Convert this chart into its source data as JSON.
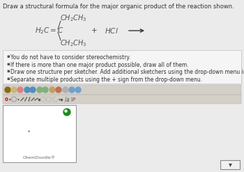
{
  "title": "Draw a structural formula for the major organic product of the reaction shown.",
  "title_fontsize": 6.0,
  "title_color": "#333333",
  "bg_color": "#ebebeb",
  "bullet_points": [
    "You do not have to consider stereochemistry.",
    "If there is more than one major product possible, draw all of them.",
    "Draw one structure per sketcher. Add additional sketchers using the drop-down menu in the bottom right corner.",
    "Separate multiple products using the + sign from the drop-down menu."
  ],
  "bullet_fontsize": 5.5,
  "bullet_color": "#333333",
  "sketcher_box_color": "#ffffff",
  "sketcher_border_color": "#999999",
  "chemdoodle_label": "ChemDoodle®",
  "green_dot_color": "#1d8c1d",
  "small_dot_color": "#777777",
  "box_bg": "#f5f5f5",
  "box_border": "#cccccc",
  "toolbar_bg1": "#d4d0c8",
  "toolbar_bg2": "#d4d0c8",
  "chem_color": "#555555",
  "arrow_color": "#333333"
}
